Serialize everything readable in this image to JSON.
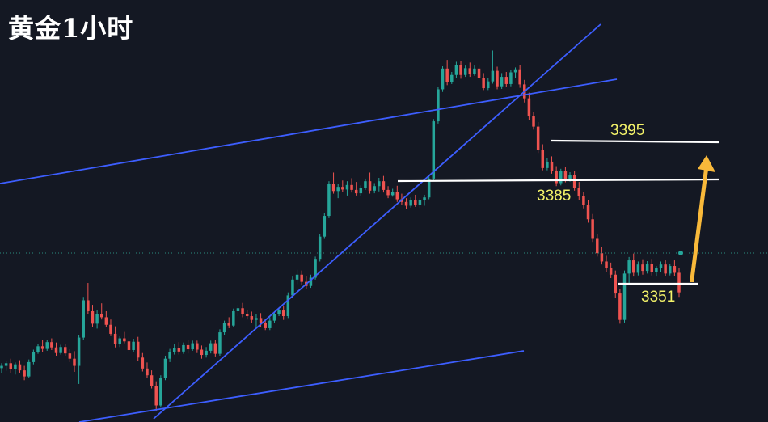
{
  "title": "黄金1小时",
  "chart_data": {
    "type": "candlestick",
    "title": "黄金1小时",
    "level_labels": {
      "resistance": "3395",
      "support": "3385",
      "low": "3351"
    },
    "levels": [
      {
        "name": "resistance",
        "value": 3395,
        "label": "3395"
      },
      {
        "name": "support",
        "value": 3385,
        "label": "3385"
      },
      {
        "name": "low",
        "value": 3351,
        "label": "3351"
      }
    ],
    "projection": {
      "from": 3351,
      "to": 3395,
      "direction": "up"
    },
    "ylim": [
      3326,
      3438
    ],
    "colors": {
      "background": "#141823",
      "up": "#26a69a",
      "down": "#ef5350",
      "trendline": "#3d5eff",
      "level_line": "#ffffff",
      "label": "#f4f36a",
      "arrow": "#f9b93a",
      "current_price_line": "#2a8d7f"
    },
    "candles": [
      [
        3340.3,
        3341.6,
        3339.1,
        3340.9
      ],
      [
        3340.9,
        3342.3,
        3339.6,
        3341.6
      ],
      [
        3341.6,
        3342.8,
        3338.9,
        3340.1
      ],
      [
        3340.1,
        3341.8,
        3338.6,
        3341.3
      ],
      [
        3341.3,
        3342.4,
        3339.1,
        3339.7
      ],
      [
        3339.7,
        3340.9,
        3337.1,
        3338.1
      ],
      [
        3338.1,
        3342.6,
        3337.7,
        3341.9
      ],
      [
        3341.9,
        3345.2,
        3341.3,
        3344.6
      ],
      [
        3344.6,
        3346.7,
        3344.1,
        3346.1
      ],
      [
        3346.1,
        3347.7,
        3344.6,
        3345.4
      ],
      [
        3345.4,
        3347.8,
        3344.9,
        3347.2
      ],
      [
        3347.2,
        3348.2,
        3345.1,
        3345.8
      ],
      [
        3345.8,
        3347.1,
        3343.6,
        3344.3
      ],
      [
        3344.3,
        3346.5,
        3343.9,
        3345.9
      ],
      [
        3345.9,
        3346.6,
        3343.6,
        3344.2
      ],
      [
        3344.2,
        3345.3,
        3341.9,
        3342.8
      ],
      [
        3342.8,
        3344.8,
        3339.3,
        3340.9
      ],
      [
        3340.9,
        3349.1,
        3336.1,
        3348.4
      ],
      [
        3348.4,
        3359.2,
        3347.8,
        3358.3
      ],
      [
        3358.3,
        3362.9,
        3354.6,
        3355.4
      ],
      [
        3355.4,
        3357.1,
        3351.1,
        3352.1
      ],
      [
        3352.1,
        3355.6,
        3350.8,
        3354.6
      ],
      [
        3354.6,
        3357.5,
        3353.2,
        3353.8
      ],
      [
        3353.8,
        3355.4,
        3351.1,
        3351.8
      ],
      [
        3351.8,
        3353.2,
        3348.8,
        3349.4
      ],
      [
        3349.4,
        3351.4,
        3345.8,
        3346.6
      ],
      [
        3346.6,
        3348.7,
        3345.9,
        3348.2
      ],
      [
        3348.2,
        3349.9,
        3346.9,
        3347.4
      ],
      [
        3347.4,
        3348.7,
        3344.4,
        3345.1
      ],
      [
        3345.1,
        3348.1,
        3344.6,
        3347.3
      ],
      [
        3347.3,
        3348.6,
        3342.1,
        3343.1
      ],
      [
        3343.1,
        3344.3,
        3339.4,
        3340.2
      ],
      [
        3340.2,
        3341.8,
        3337.7,
        3338.4
      ],
      [
        3338.4,
        3339.7,
        3334.9,
        3335.6
      ],
      [
        3335.6,
        3336.8,
        3328.9,
        3330.4
      ],
      [
        3330.4,
        3338.4,
        3329.8,
        3337.6
      ],
      [
        3337.6,
        3343.6,
        3337.1,
        3342.8
      ],
      [
        3342.8,
        3345.4,
        3341.9,
        3344.6
      ],
      [
        3344.6,
        3346.7,
        3343.9,
        3345.6
      ],
      [
        3345.6,
        3347.2,
        3343.9,
        3344.7
      ],
      [
        3344.7,
        3347.1,
        3344.1,
        3346.4
      ],
      [
        3346.4,
        3347.9,
        3344.2,
        3345.3
      ],
      [
        3345.3,
        3347.6,
        3344.9,
        3346.9
      ],
      [
        3346.9,
        3347.6,
        3344.3,
        3345.2
      ],
      [
        3345.2,
        3346.3,
        3342.8,
        3343.8
      ],
      [
        3343.8,
        3345.9,
        3343.1,
        3344.9
      ],
      [
        3344.9,
        3347.6,
        3344.2,
        3346.9
      ],
      [
        3346.9,
        3347.8,
        3343.4,
        3344.1
      ],
      [
        3344.1,
        3350.6,
        3343.6,
        3349.8
      ],
      [
        3349.8,
        3352.9,
        3349.1,
        3352.3
      ],
      [
        3352.3,
        3353.8,
        3350.9,
        3351.6
      ],
      [
        3351.6,
        3356.1,
        3351.1,
        3355.4
      ],
      [
        3355.4,
        3357.1,
        3354.1,
        3356.2
      ],
      [
        3356.2,
        3357.6,
        3353.8,
        3354.6
      ],
      [
        3354.6,
        3355.7,
        3353.2,
        3354.1
      ],
      [
        3354.1,
        3355.3,
        3352.2,
        3353.1
      ],
      [
        3353.1,
        3354.6,
        3351.3,
        3353.6
      ],
      [
        3353.6,
        3354.9,
        3351.3,
        3352.3
      ],
      [
        3352.3,
        3353.4,
        3350.4,
        3350.9
      ],
      [
        3350.9,
        3353.8,
        3350.4,
        3352.9
      ],
      [
        3352.9,
        3355.3,
        3352.3,
        3354.7
      ],
      [
        3354.7,
        3356.2,
        3354.1,
        3355.6
      ],
      [
        3355.6,
        3356.7,
        3353.1,
        3354.1
      ],
      [
        3354.1,
        3360.4,
        3353.6,
        3359.6
      ],
      [
        3359.6,
        3364.6,
        3358.9,
        3363.8
      ],
      [
        3363.8,
        3366.4,
        3362.6,
        3365.1
      ],
      [
        3365.1,
        3366.2,
        3362.3,
        3363.2
      ],
      [
        3363.2,
        3364.7,
        3361.4,
        3362.1
      ],
      [
        3362.1,
        3365.1,
        3361.6,
        3364.3
      ],
      [
        3364.3,
        3369.9,
        3363.8,
        3369.3
      ],
      [
        3369.3,
        3375.9,
        3368.6,
        3375.2
      ],
      [
        3375.2,
        3381.4,
        3374.6,
        3380.7
      ],
      [
        3380.7,
        3389.9,
        3380.1,
        3389.1
      ],
      [
        3389.1,
        3392.2,
        3386.6,
        3387.3
      ],
      [
        3387.3,
        3389.1,
        3385.4,
        3388.4
      ],
      [
        3388.4,
        3390.1,
        3387.1,
        3387.7
      ],
      [
        3387.7,
        3389.9,
        3386.1,
        3388.9
      ],
      [
        3388.9,
        3390.7,
        3386.9,
        3387.6
      ],
      [
        3387.6,
        3389.7,
        3386.1,
        3386.7
      ],
      [
        3386.7,
        3388.8,
        3385.9,
        3388.1
      ],
      [
        3388.1,
        3390.6,
        3387.6,
        3389.9
      ],
      [
        3389.9,
        3392.2,
        3386.6,
        3387.4
      ],
      [
        3387.4,
        3389.4,
        3386.7,
        3388.6
      ],
      [
        3388.6,
        3390.8,
        3387.2,
        3389.9
      ],
      [
        3389.9,
        3391.3,
        3386.9,
        3387.6
      ],
      [
        3387.6,
        3388.6,
        3385.4,
        3386.2
      ],
      [
        3386.2,
        3387.9,
        3385.8,
        3387.1
      ],
      [
        3387.1,
        3388.7,
        3384.4,
        3385.1
      ],
      [
        3385.1,
        3386.6,
        3383.7,
        3384.4
      ],
      [
        3384.4,
        3385.4,
        3382.6,
        3383.4
      ],
      [
        3383.4,
        3385.6,
        3382.9,
        3384.8
      ],
      [
        3384.8,
        3386.3,
        3383.1,
        3383.7
      ],
      [
        3383.7,
        3385.4,
        3382.8,
        3384.9
      ],
      [
        3384.9,
        3386.3,
        3383.4,
        3385.6
      ],
      [
        3385.6,
        3391.2,
        3385.1,
        3390.6
      ],
      [
        3390.6,
        3406.4,
        3390.1,
        3405.8
      ],
      [
        3405.8,
        3414.9,
        3405.2,
        3414.3
      ],
      [
        3414.3,
        3420.4,
        3413.6,
        3419.8
      ],
      [
        3419.8,
        3422.1,
        3415.4,
        3416.3
      ],
      [
        3416.3,
        3418.9,
        3415.7,
        3418.1
      ],
      [
        3418.1,
        3421.6,
        3417.4,
        3420.7
      ],
      [
        3420.7,
        3421.9,
        3417.1,
        3418.1
      ],
      [
        3418.1,
        3420.6,
        3417.6,
        3419.9
      ],
      [
        3419.9,
        3421.4,
        3417.6,
        3418.4
      ],
      [
        3418.4,
        3420.6,
        3417.9,
        3419.8
      ],
      [
        3419.8,
        3420.9,
        3416.8,
        3417.4
      ],
      [
        3417.4,
        3418.6,
        3414.1,
        3414.6
      ],
      [
        3414.6,
        3417.4,
        3414.1,
        3416.4
      ],
      [
        3416.4,
        3424.6,
        3415.8,
        3419.2
      ],
      [
        3419.2,
        3420.3,
        3414.3,
        3415.1
      ],
      [
        3415.1,
        3418.6,
        3414.4,
        3417.6
      ],
      [
        3417.6,
        3418.9,
        3414.9,
        3415.7
      ],
      [
        3415.7,
        3419.4,
        3415.1,
        3418.8
      ],
      [
        3418.8,
        3420.1,
        3417.2,
        3419.6
      ],
      [
        3419.6,
        3420.8,
        3414.7,
        3415.6
      ],
      [
        3415.6,
        3416.8,
        3410.8,
        3411.9
      ],
      [
        3411.9,
        3413.4,
        3406.2,
        3407.1
      ],
      [
        3407.1,
        3408.3,
        3403.6,
        3404.4
      ],
      [
        3404.4,
        3405.6,
        3397.4,
        3398.2
      ],
      [
        3398.2,
        3399.7,
        3392.8,
        3393.4
      ],
      [
        3393.4,
        3396.1,
        3392.8,
        3395.1
      ],
      [
        3395.1,
        3396.5,
        3391.9,
        3392.7
      ],
      [
        3392.7,
        3393.9,
        3388.6,
        3389.4
      ],
      [
        3389.4,
        3393.2,
        3388.8,
        3392.6
      ],
      [
        3392.6,
        3393.8,
        3389.6,
        3390.4
      ],
      [
        3390.4,
        3392.3,
        3389.8,
        3391.6
      ],
      [
        3391.6,
        3392.7,
        3387.4,
        3388.2
      ],
      [
        3388.2,
        3389.7,
        3384.8,
        3385.9
      ],
      [
        3385.9,
        3387.1,
        3382.7,
        3383.6
      ],
      [
        3383.6,
        3384.8,
        3378.9,
        3379.8
      ],
      [
        3379.8,
        3381.2,
        3373.8,
        3374.6
      ],
      [
        3374.6,
        3375.8,
        3369.9,
        3370.8
      ],
      [
        3370.8,
        3372.4,
        3367.8,
        3368.6
      ],
      [
        3368.6,
        3370.1,
        3365.9,
        3366.8
      ],
      [
        3366.8,
        3368.3,
        3364.2,
        3365.1
      ],
      [
        3365.1,
        3366.2,
        3358.9,
        3360.1
      ],
      [
        3360.1,
        3361.4,
        3352.1,
        3353.1
      ],
      [
        3353.1,
        3366.2,
        3352.4,
        3365.4
      ],
      [
        3365.4,
        3369.8,
        3362.9,
        3368.9
      ],
      [
        3368.9,
        3370.7,
        3364.6,
        3365.6
      ],
      [
        3365.6,
        3368.6,
        3364.9,
        3367.8
      ],
      [
        3367.8,
        3369.2,
        3365.1,
        3366.1
      ],
      [
        3366.1,
        3368.7,
        3365.4,
        3367.9
      ],
      [
        3367.9,
        3369.3,
        3364.9,
        3365.8
      ],
      [
        3365.8,
        3367.4,
        3364.6,
        3366.9
      ],
      [
        3366.9,
        3368.6,
        3365.7,
        3367.8
      ],
      [
        3367.8,
        3368.9,
        3364.7,
        3365.4
      ],
      [
        3365.4,
        3367.9,
        3364.9,
        3367.4
      ],
      [
        3367.4,
        3368.9,
        3364.8,
        3365.6
      ],
      [
        3365.6,
        3366.8,
        3359.2,
        3360.4
      ]
    ]
  }
}
